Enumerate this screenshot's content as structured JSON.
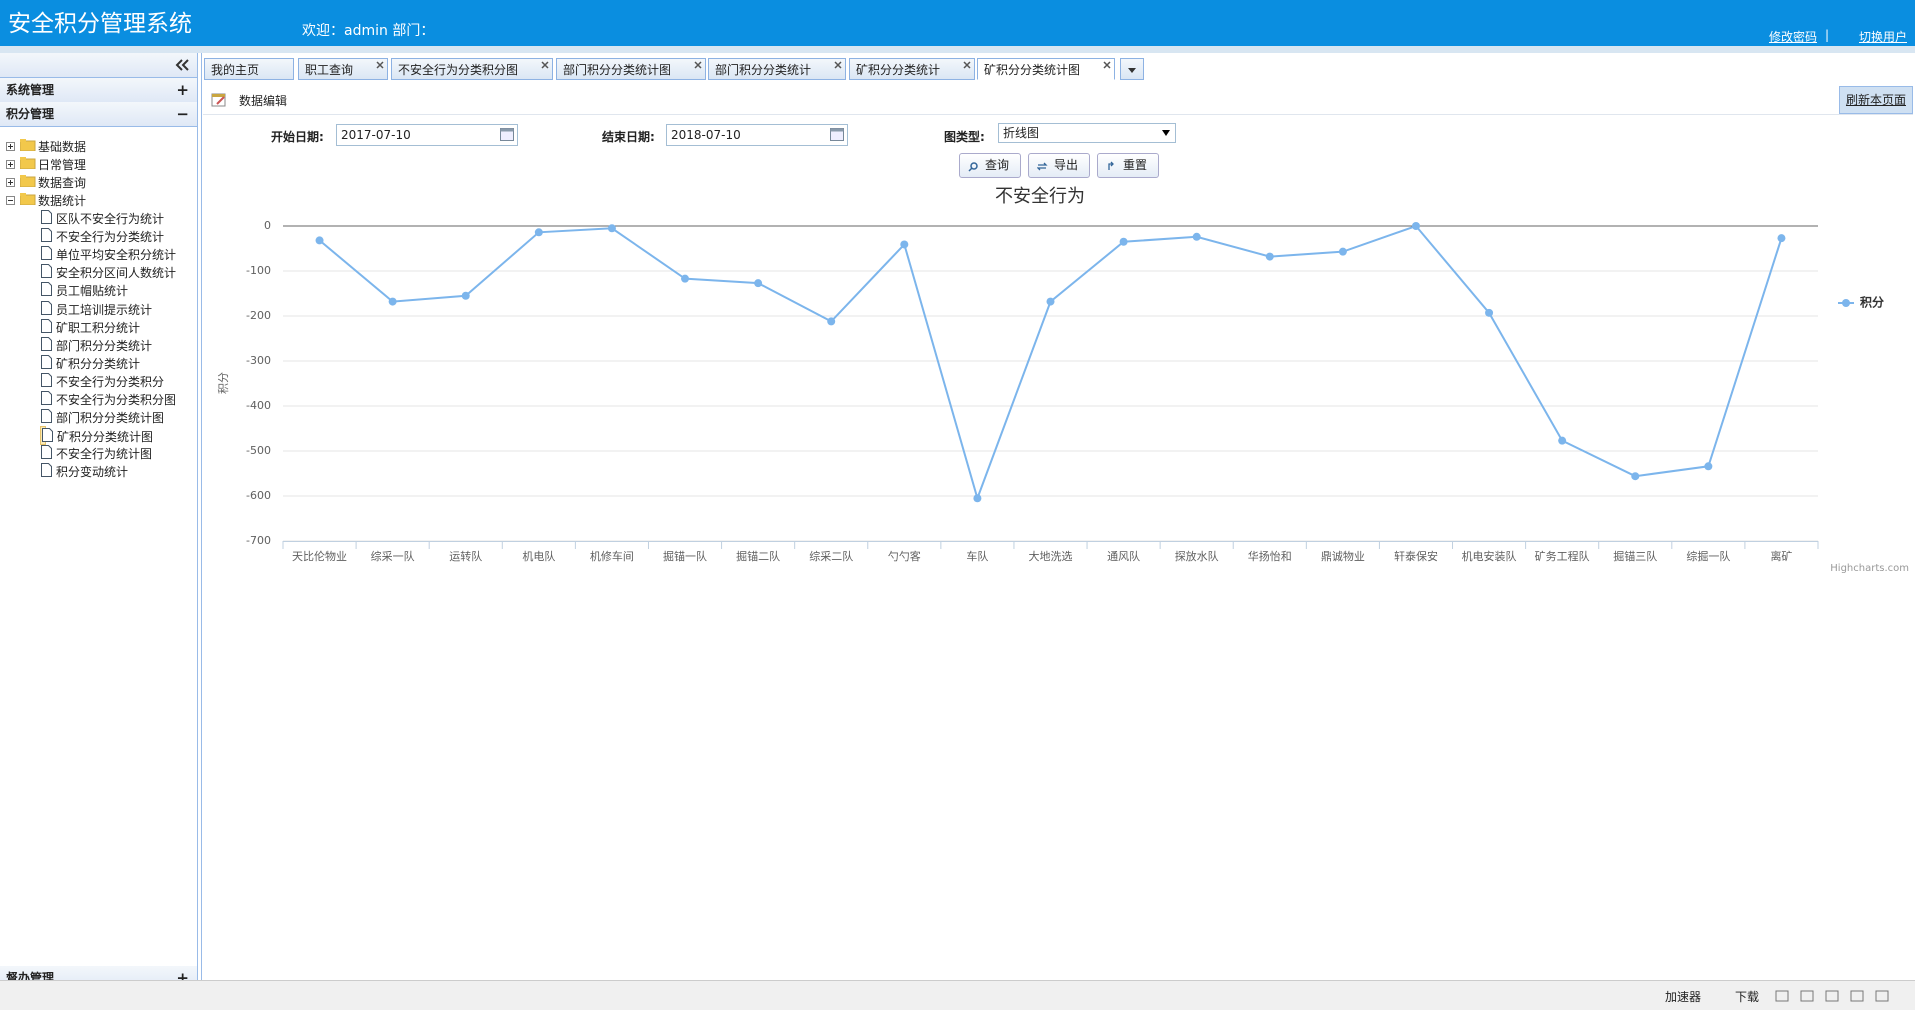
{
  "header": {
    "title": "安全积分管理系统",
    "welcome": "欢迎：admin 部门：",
    "links": [
      "修改密码",
      "|",
      "切换用户"
    ]
  },
  "sidebar": {
    "menus": [
      {
        "title": "系统管理",
        "toggle": "+"
      },
      {
        "title": "积分管理",
        "toggle": "−"
      },
      {
        "title": "督办管理",
        "toggle": "+"
      }
    ],
    "tree": [
      "基础数据",
      "日常管理",
      "数据查询",
      "数据统计"
    ],
    "leaves": [
      "区队不安全行为统计",
      "不安全行为分类统计",
      "单位平均安全积分统计",
      "安全积分区间人数统计",
      "员工帽贴统计",
      "员工培训提示统计",
      "矿职工积分统计",
      "部门积分分类统计",
      "矿积分分类统计",
      "不安全行为分类积分",
      "不安全行为分类积分图",
      "部门积分分类统计图",
      "矿积分分类统计图",
      "不安全行为统计图",
      "积分变动统计"
    ]
  },
  "tabs": [
    "我的主页",
    "职工查询",
    "不安全行为分类积分图",
    "部门积分分类统计图",
    "部门积分分类统计",
    "矿积分分类统计",
    "矿积分分类统计图"
  ],
  "toolbar": {
    "title": "数据编辑",
    "refresh": "刷新本页面"
  },
  "form": {
    "start_label": "开始日期:",
    "start": "2017-07-10",
    "end_label": "结束日期:",
    "end": "2018-07-10",
    "type_label": "图类型:",
    "type": "折线图",
    "buttons": [
      "查询",
      "导出",
      "重置"
    ]
  },
  "chart_data": {
    "type": "line",
    "title": "不安全行为",
    "y_label": "积分",
    "credits": "Highcharts.com",
    "categories": [
      "天比伦物业",
      "综采一队",
      "运转队",
      "机电队",
      "机修车间",
      "掘锚一队",
      "掘锚二队",
      "综采二队",
      "勺勺客",
      "车队",
      "大地洗选",
      "通风队",
      "探放水队",
      "华扬怡和",
      "鼎诚物业",
      "轩泰保安",
      "机电安装队",
      "矿务工程队",
      "掘锚三队",
      "综掘一队",
      "离矿"
    ],
    "series": [
      {
        "name": "积分",
        "color": "#7cb5ec",
        "values": [
          -32,
          -168,
          -155,
          -14,
          -5,
          -117,
          -127,
          -212,
          -41,
          -605,
          -168,
          -35,
          -24,
          -68,
          -57,
          0,
          -193,
          -477,
          -556,
          -534,
          -27
        ]
      }
    ],
    "ylim": [
      -700,
      0
    ],
    "yticks": [
      0,
      -100,
      -200,
      -300,
      -400,
      -500,
      -600,
      -700
    ],
    "grid": true,
    "legend": "right"
  },
  "statusbar": [
    "加速器",
    "下载"
  ]
}
